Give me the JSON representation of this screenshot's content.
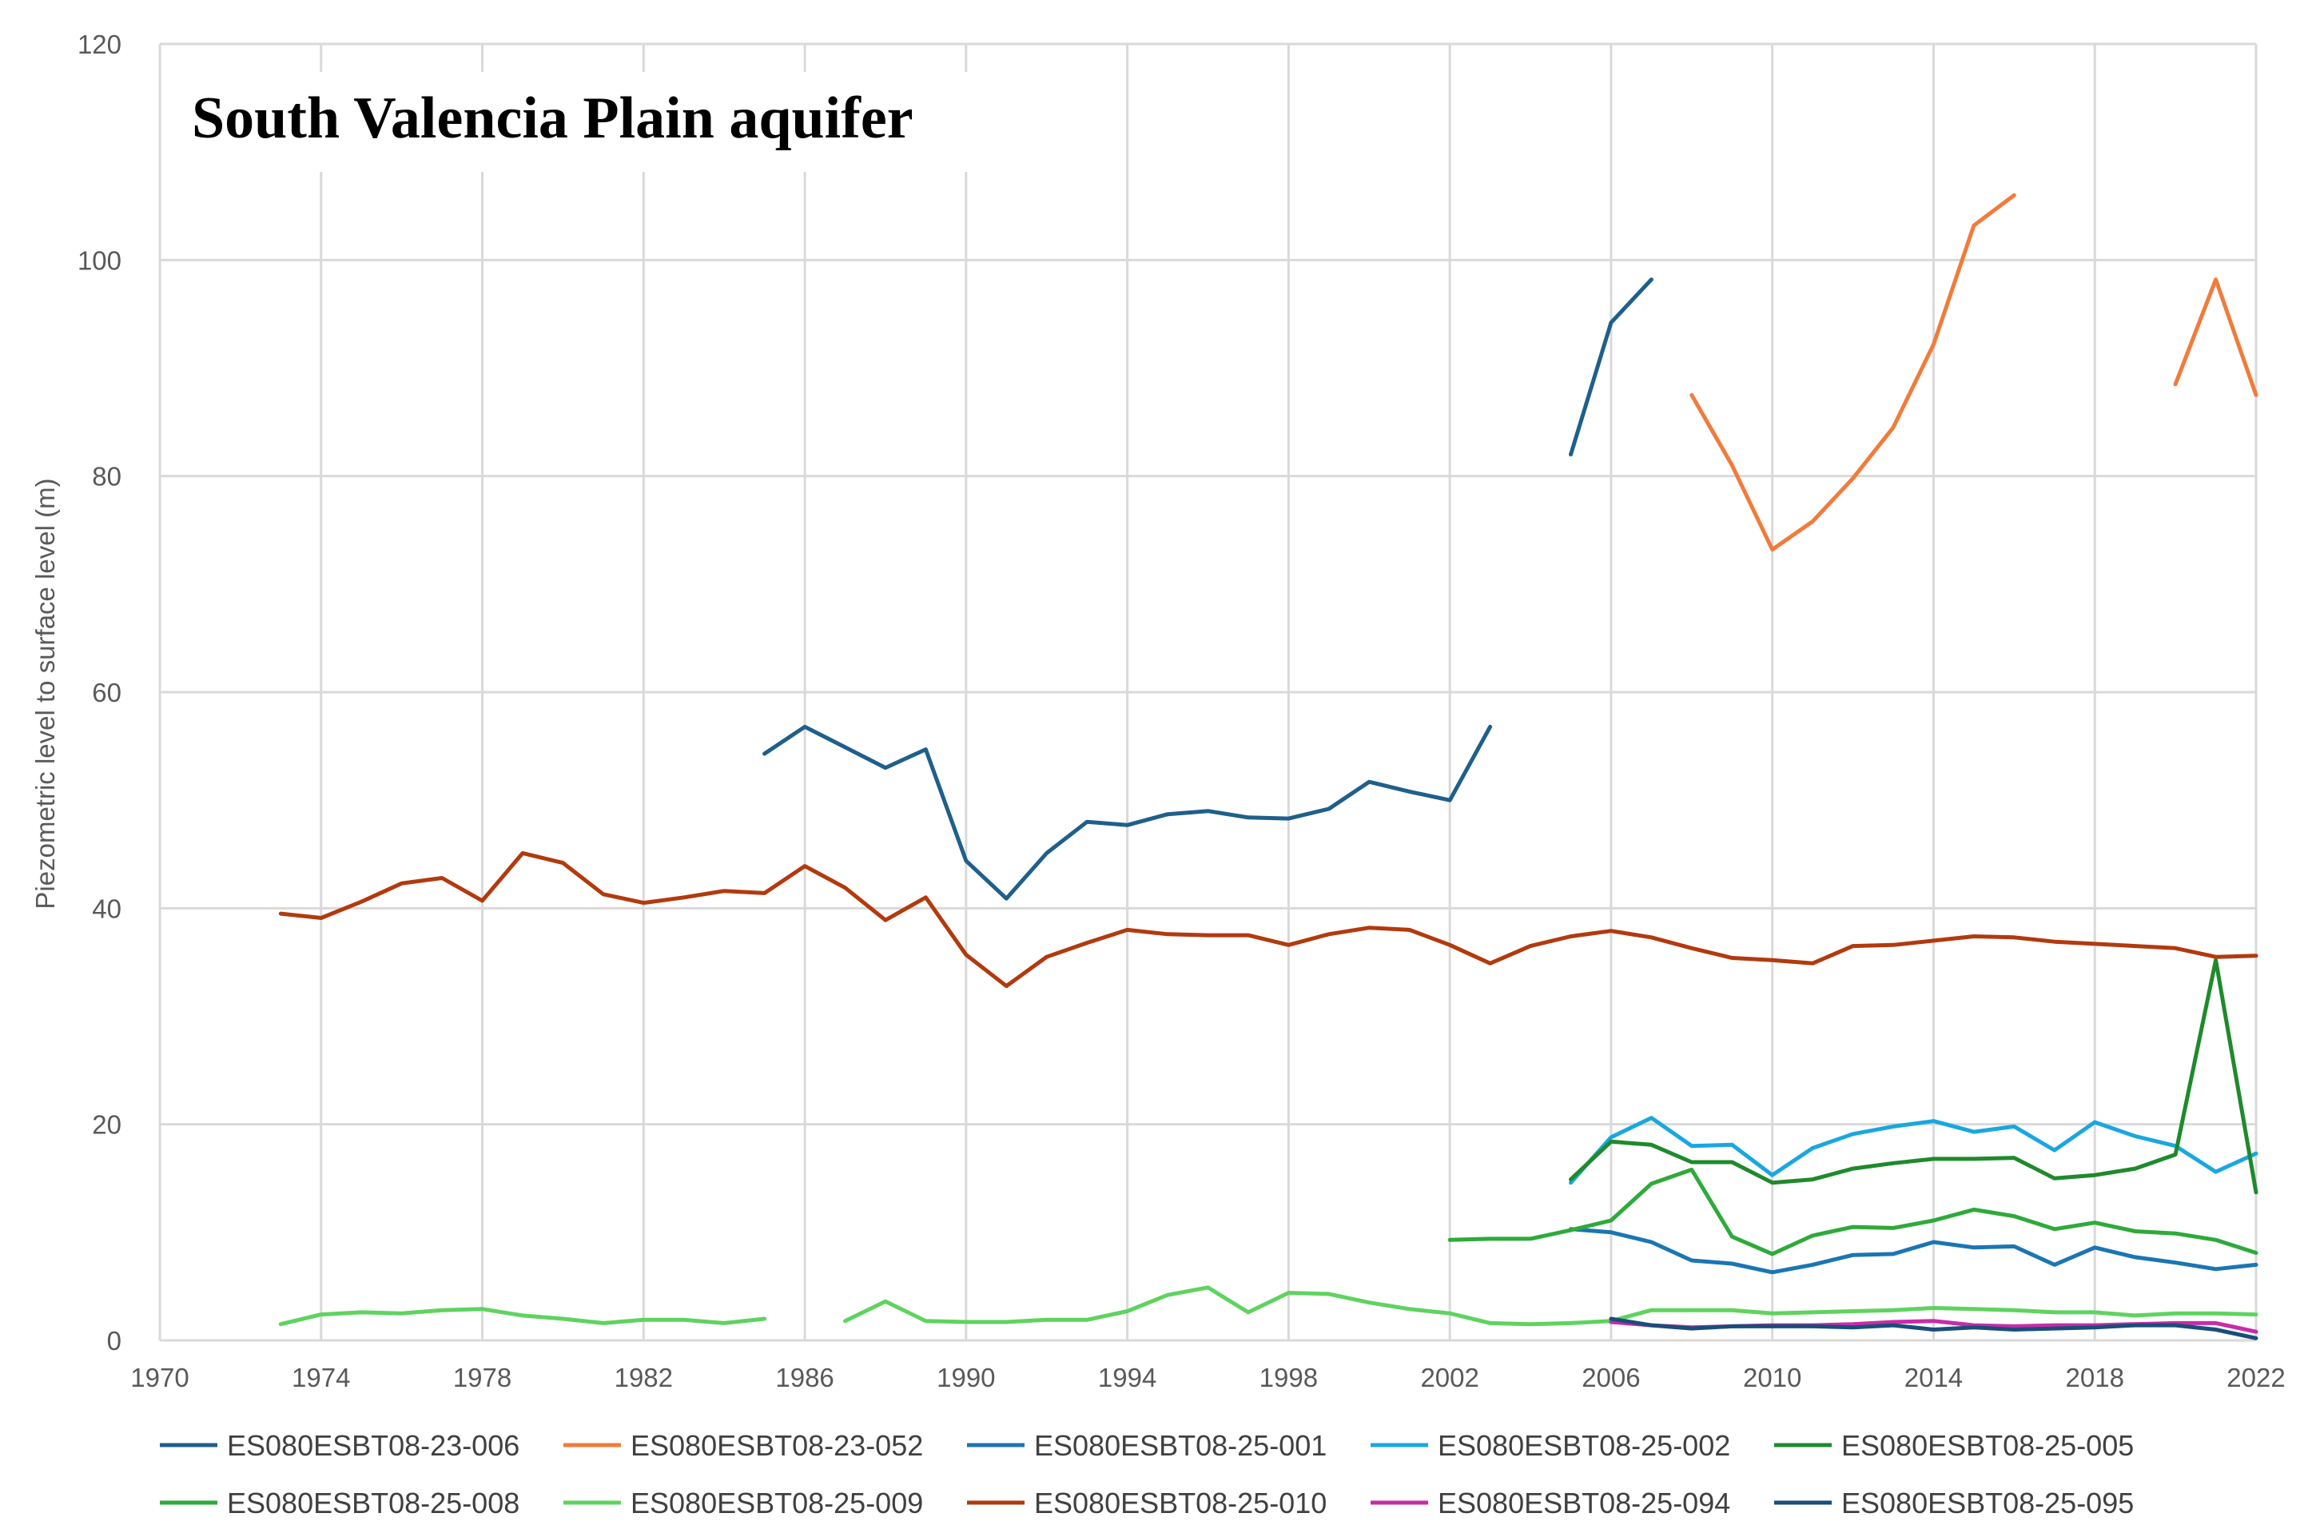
{
  "chart_data": {
    "type": "line",
    "title": "South Valencia Plain aquifer",
    "xlabel": "",
    "ylabel": "Piezometric level to surface level (m)",
    "xlim": [
      1970,
      2022
    ],
    "ylim": [
      0,
      120
    ],
    "x_ticks": [
      1970,
      1974,
      1978,
      1982,
      1986,
      1990,
      1994,
      1998,
      2002,
      2006,
      2010,
      2014,
      2018,
      2022
    ],
    "y_ticks": [
      0,
      20,
      40,
      60,
      80,
      100,
      120
    ],
    "grid": true,
    "legend_position": "bottom",
    "series": [
      {
        "name": "ES080ESBT08-23-006",
        "color": "#1f5f8b",
        "segments": [
          [
            [
              1985,
              54.3
            ],
            [
              1986,
              56.8
            ],
            [
              1987,
              54.9
            ],
            [
              1988,
              53.0
            ],
            [
              1989,
              54.7
            ],
            [
              1990,
              44.4
            ],
            [
              1991,
              40.9
            ],
            [
              1992,
              45.1
            ],
            [
              1993,
              48.0
            ],
            [
              1994,
              47.7
            ],
            [
              1995,
              48.7
            ],
            [
              1996,
              49.0
            ],
            [
              1997,
              48.4
            ],
            [
              1998,
              48.3
            ],
            [
              1999,
              49.2
            ],
            [
              2000,
              51.7
            ],
            [
              2001,
              50.8
            ],
            [
              2002,
              50.0
            ],
            [
              2003,
              56.8
            ]
          ],
          [
            [
              2005,
              82.0
            ],
            [
              2006,
              94.2
            ],
            [
              2007,
              98.2
            ]
          ]
        ]
      },
      {
        "name": "ES080ESBT08-23-052",
        "color": "#f07c3c",
        "segments": [
          [
            [
              2008,
              87.5
            ],
            [
              2009,
              81.0
            ],
            [
              2010,
              73.2
            ],
            [
              2011,
              75.8
            ],
            [
              2012,
              79.8
            ],
            [
              2013,
              84.5
            ],
            [
              2014,
              92.2
            ],
            [
              2015,
              103.2
            ],
            [
              2016,
              106.0
            ]
          ],
          [
            [
              2020,
              88.5
            ],
            [
              2021,
              98.2
            ],
            [
              2022,
              87.5
            ]
          ]
        ]
      },
      {
        "name": "ES080ESBT08-25-001",
        "color": "#1b75b4",
        "segments": [
          [
            [
              2005,
              10.3
            ],
            [
              2006,
              10.0
            ],
            [
              2007,
              9.1
            ],
            [
              2008,
              7.4
            ],
            [
              2009,
              7.1
            ],
            [
              2010,
              6.3
            ],
            [
              2011,
              7.0
            ],
            [
              2012,
              7.9
            ],
            [
              2013,
              8.0
            ],
            [
              2014,
              9.1
            ],
            [
              2015,
              8.6
            ],
            [
              2016,
              8.7
            ],
            [
              2017,
              7.0
            ],
            [
              2018,
              8.6
            ],
            [
              2019,
              7.7
            ],
            [
              2020,
              7.2
            ],
            [
              2021,
              6.6
            ],
            [
              2022,
              7.0
            ]
          ]
        ]
      },
      {
        "name": "ES080ESBT08-25-002",
        "color": "#1aa7e0",
        "segments": [
          [
            [
              2005,
              14.6
            ],
            [
              2006,
              18.8
            ],
            [
              2007,
              20.6
            ],
            [
              2008,
              18.0
            ],
            [
              2009,
              18.1
            ],
            [
              2010,
              15.3
            ],
            [
              2011,
              17.8
            ],
            [
              2012,
              19.1
            ],
            [
              2013,
              19.8
            ],
            [
              2014,
              20.3
            ],
            [
              2015,
              19.3
            ],
            [
              2016,
              19.8
            ],
            [
              2017,
              17.6
            ],
            [
              2018,
              20.2
            ],
            [
              2019,
              18.9
            ],
            [
              2020,
              18.0
            ],
            [
              2021,
              15.6
            ],
            [
              2022,
              17.3
            ]
          ]
        ]
      },
      {
        "name": "ES080ESBT08-25-005",
        "color": "#1f8a2c",
        "segments": [
          [
            [
              2005,
              14.9
            ],
            [
              2006,
              18.4
            ],
            [
              2007,
              18.1
            ],
            [
              2008,
              16.5
            ],
            [
              2009,
              16.5
            ],
            [
              2010,
              14.6
            ],
            [
              2011,
              14.9
            ],
            [
              2012,
              15.9
            ],
            [
              2013,
              16.4
            ],
            [
              2014,
              16.8
            ],
            [
              2015,
              16.8
            ],
            [
              2016,
              16.9
            ],
            [
              2017,
              15.0
            ],
            [
              2018,
              15.3
            ],
            [
              2019,
              15.9
            ],
            [
              2020,
              17.2
            ],
            [
              2021,
              35.2
            ],
            [
              2022,
              13.7
            ]
          ]
        ]
      },
      {
        "name": "ES080ESBT08-25-008",
        "color": "#2eaa3a",
        "segments": [
          [
            [
              2002,
              9.3
            ],
            [
              2003,
              9.4
            ],
            [
              2004,
              9.4
            ],
            [
              2005,
              10.2
            ],
            [
              2006,
              11.1
            ],
            [
              2007,
              14.5
            ],
            [
              2008,
              15.8
            ],
            [
              2009,
              9.6
            ],
            [
              2010,
              8.0
            ],
            [
              2011,
              9.7
            ],
            [
              2012,
              10.5
            ],
            [
              2013,
              10.4
            ],
            [
              2014,
              11.1
            ],
            [
              2015,
              12.1
            ],
            [
              2016,
              11.5
            ],
            [
              2017,
              10.3
            ],
            [
              2018,
              10.9
            ],
            [
              2019,
              10.1
            ],
            [
              2020,
              9.9
            ],
            [
              2021,
              9.3
            ],
            [
              2022,
              8.1
            ]
          ]
        ]
      },
      {
        "name": "ES080ESBT08-25-009",
        "color": "#5fd35f",
        "segments": [
          [
            [
              1973,
              1.5
            ],
            [
              1974,
              2.4
            ],
            [
              1975,
              2.6
            ],
            [
              1976,
              2.5
            ],
            [
              1977,
              2.8
            ],
            [
              1978,
              2.9
            ],
            [
              1979,
              2.3
            ],
            [
              1980,
              2.0
            ],
            [
              1981,
              1.6
            ],
            [
              1982,
              1.9
            ],
            [
              1983,
              1.9
            ],
            [
              1984,
              1.6
            ],
            [
              1985,
              2.0
            ]
          ],
          [
            [
              1987,
              1.8
            ],
            [
              1988,
              3.6
            ],
            [
              1989,
              1.8
            ],
            [
              1990,
              1.7
            ],
            [
              1991,
              1.7
            ],
            [
              1992,
              1.9
            ],
            [
              1993,
              1.9
            ],
            [
              1994,
              2.7
            ],
            [
              1995,
              4.2
            ],
            [
              1996,
              4.9
            ],
            [
              1997,
              2.6
            ],
            [
              1998,
              4.4
            ],
            [
              1999,
              4.3
            ],
            [
              2000,
              3.5
            ],
            [
              2001,
              2.9
            ],
            [
              2002,
              2.5
            ],
            [
              2003,
              1.6
            ],
            [
              2004,
              1.5
            ],
            [
              2005,
              1.6
            ],
            [
              2006,
              1.8
            ],
            [
              2007,
              2.8
            ],
            [
              2008,
              2.8
            ],
            [
              2009,
              2.8
            ],
            [
              2010,
              2.5
            ],
            [
              2011,
              2.6
            ],
            [
              2012,
              2.7
            ],
            [
              2013,
              2.8
            ],
            [
              2014,
              3.0
            ],
            [
              2015,
              2.9
            ],
            [
              2016,
              2.8
            ],
            [
              2017,
              2.6
            ],
            [
              2018,
              2.6
            ],
            [
              2019,
              2.3
            ],
            [
              2020,
              2.5
            ],
            [
              2021,
              2.5
            ],
            [
              2022,
              2.4
            ]
          ]
        ]
      },
      {
        "name": "ES080ESBT08-25-010",
        "color": "#b23a0e",
        "segments": [
          [
            [
              1973,
              39.5
            ],
            [
              1974,
              39.1
            ],
            [
              1975,
              40.6
            ],
            [
              1976,
              42.3
            ],
            [
              1977,
              42.8
            ],
            [
              1978,
              40.7
            ],
            [
              1979,
              45.1
            ],
            [
              1980,
              44.2
            ],
            [
              1981,
              41.3
            ],
            [
              1982,
              40.5
            ],
            [
              1983,
              41.0
            ],
            [
              1984,
              41.6
            ],
            [
              1985,
              41.4
            ],
            [
              1986,
              43.9
            ],
            [
              1987,
              41.9
            ],
            [
              1988,
              38.9
            ],
            [
              1989,
              41.0
            ],
            [
              1990,
              35.7
            ],
            [
              1991,
              32.8
            ],
            [
              1992,
              35.5
            ],
            [
              1993,
              36.8
            ],
            [
              1994,
              38.0
            ],
            [
              1995,
              37.6
            ],
            [
              1996,
              37.5
            ],
            [
              1997,
              37.5
            ],
            [
              1998,
              36.6
            ],
            [
              1999,
              37.6
            ],
            [
              2000,
              38.2
            ],
            [
              2001,
              38.0
            ],
            [
              2002,
              36.6
            ],
            [
              2003,
              34.9
            ],
            [
              2004,
              36.5
            ],
            [
              2005,
              37.4
            ],
            [
              2006,
              37.9
            ],
            [
              2007,
              37.3
            ],
            [
              2008,
              36.3
            ],
            [
              2009,
              35.4
            ],
            [
              2010,
              35.2
            ],
            [
              2011,
              34.9
            ],
            [
              2012,
              36.5
            ],
            [
              2013,
              36.6
            ],
            [
              2014,
              37.0
            ],
            [
              2015,
              37.4
            ],
            [
              2016,
              37.3
            ],
            [
              2017,
              36.9
            ],
            [
              2018,
              36.7
            ],
            [
              2019,
              36.5
            ],
            [
              2020,
              36.3
            ],
            [
              2021,
              35.5
            ],
            [
              2022,
              35.6
            ]
          ]
        ]
      },
      {
        "name": "ES080ESBT08-25-094",
        "color": "#c82ca8",
        "segments": [
          [
            [
              2006,
              1.7
            ],
            [
              2007,
              1.4
            ],
            [
              2008,
              1.2
            ],
            [
              2009,
              1.3
            ],
            [
              2010,
              1.4
            ],
            [
              2011,
              1.4
            ],
            [
              2012,
              1.5
            ],
            [
              2013,
              1.7
            ],
            [
              2014,
              1.8
            ],
            [
              2015,
              1.4
            ],
            [
              2016,
              1.3
            ],
            [
              2017,
              1.4
            ],
            [
              2018,
              1.4
            ],
            [
              2019,
              1.5
            ],
            [
              2020,
              1.6
            ],
            [
              2021,
              1.6
            ],
            [
              2022,
              0.8
            ]
          ]
        ]
      },
      {
        "name": "ES080ESBT08-25-095",
        "color": "#1a4e7a",
        "segments": [
          [
            [
              2006,
              2.0
            ],
            [
              2007,
              1.4
            ],
            [
              2008,
              1.1
            ],
            [
              2009,
              1.3
            ],
            [
              2010,
              1.3
            ],
            [
              2011,
              1.3
            ],
            [
              2012,
              1.2
            ],
            [
              2013,
              1.4
            ],
            [
              2014,
              1.0
            ],
            [
              2015,
              1.2
            ],
            [
              2016,
              1.0
            ],
            [
              2017,
              1.1
            ],
            [
              2018,
              1.2
            ],
            [
              2019,
              1.4
            ],
            [
              2020,
              1.4
            ],
            [
              2021,
              1.0
            ],
            [
              2022,
              0.2
            ]
          ]
        ]
      }
    ]
  }
}
